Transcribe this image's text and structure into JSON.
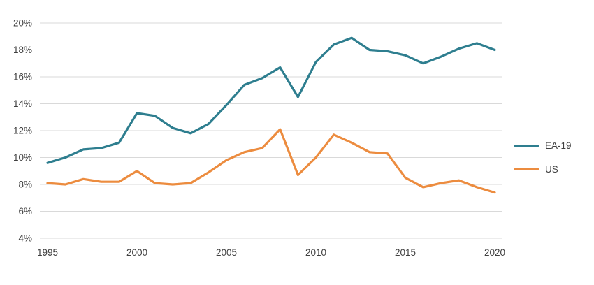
{
  "chart_data": {
    "type": "line",
    "title": "",
    "xlabel": "",
    "ylabel": "",
    "x": [
      1995,
      1996,
      1997,
      1998,
      1999,
      2000,
      2001,
      2002,
      2003,
      2004,
      2005,
      2006,
      2007,
      2008,
      2009,
      2010,
      2011,
      2012,
      2013,
      2014,
      2015,
      2016,
      2017,
      2018,
      2019,
      2020
    ],
    "series": [
      {
        "name": "EA-19",
        "color": "#2E7E8F",
        "values": [
          9.6,
          10.0,
          10.6,
          10.7,
          11.1,
          13.3,
          13.1,
          12.2,
          11.8,
          12.5,
          13.9,
          15.4,
          15.9,
          16.7,
          14.5,
          17.1,
          18.4,
          18.9,
          18.0,
          17.9,
          17.6,
          17.0,
          17.5,
          18.1,
          18.5,
          18.0
        ]
      },
      {
        "name": "US",
        "color": "#EC8C3F",
        "values": [
          8.1,
          8.0,
          8.4,
          8.2,
          8.2,
          9.0,
          8.1,
          8.0,
          8.1,
          8.9,
          9.8,
          10.4,
          10.7,
          12.1,
          8.7,
          10.0,
          11.7,
          11.1,
          10.4,
          10.3,
          8.5,
          7.8,
          8.1,
          8.3,
          7.8,
          7.4
        ]
      }
    ],
    "ylim": [
      4,
      20
    ],
    "y_tick_values": [
      20,
      18,
      16,
      14,
      12,
      10,
      8,
      6,
      4
    ],
    "y_tick_labels": [
      "20%",
      "18%",
      "16%",
      "14%",
      "12%",
      "10%",
      "8%",
      "6%",
      "4%"
    ],
    "x_tick_values": [
      1995,
      2000,
      2005,
      2010,
      2015,
      2020
    ],
    "x_tick_labels": [
      "1995",
      "2000",
      "2005",
      "2010",
      "2015",
      "2020"
    ],
    "grid": "horizontal",
    "grid_color": "#D9D9D9",
    "text_color": "#404040",
    "background": "#FFFFFF",
    "legend_position": "right"
  }
}
